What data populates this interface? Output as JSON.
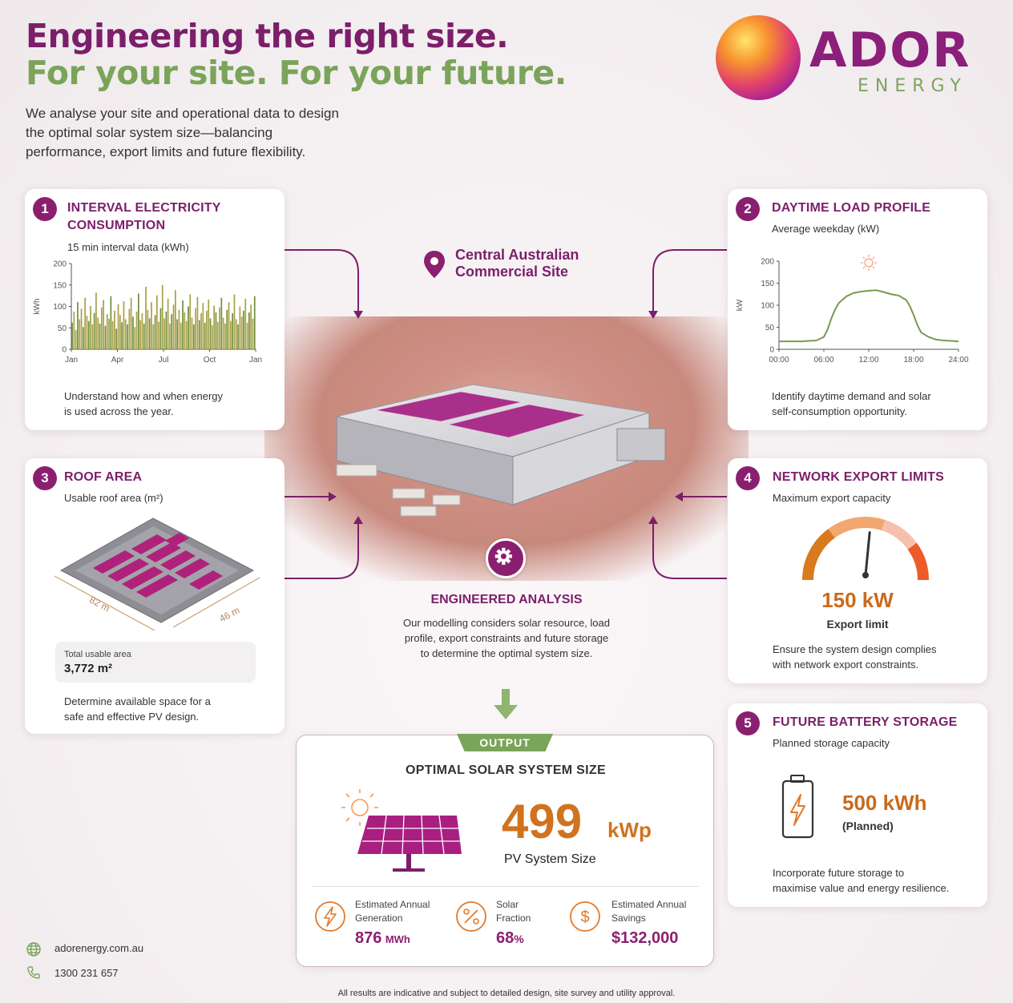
{
  "header": {
    "title_line1": "Engineering the right size.",
    "title_line2": "For your site. For your future.",
    "intro": "We analyse your site and operational data to design the optimal solar system size—balancing performance, export limits and future flexibility."
  },
  "logo": {
    "word": "ADOR",
    "sub": "ENERGY",
    "icon": "sun-orb-logo"
  },
  "center": {
    "site_label_line1": "Central Australian",
    "site_label_line2": "Commercial Site",
    "analysis_title": "ENGINEERED ANALYSIS",
    "analysis_desc": "Our modelling considers solar resource, load profile, export constraints and future storage to determine the optimal system size."
  },
  "cards": {
    "c1": {
      "num": "1",
      "title_line1": "INTERVAL ELECTRICITY",
      "title_line2": "CONSUMPTION",
      "sub": "15 min interval data (kWh)",
      "ylabel": "kWh",
      "desc_line1": "Understand how and when energy",
      "desc_line2": "is used across the year."
    },
    "c2": {
      "num": "2",
      "title": "DAYTIME LOAD PROFILE",
      "sub": "Average weekday (kW)",
      "ylabel": "kW",
      "desc_line1": "Identify daytime demand and solar",
      "desc_line2": "self-consumption opportunity."
    },
    "c3": {
      "num": "3",
      "title": "ROOF AREA",
      "sub": "Usable roof area (m²)",
      "dim_a": "82 m",
      "dim_b": "46 m",
      "total_label": "Total usable area",
      "total_value": "3,772 m²",
      "desc_line1": "Determine available space for a",
      "desc_line2": "safe and effective PV design."
    },
    "c4": {
      "num": "4",
      "title": "NETWORK EXPORT LIMITS",
      "sub": "Maximum export capacity",
      "value": "150 kW",
      "value_label": "Export limit",
      "gauge_level": 0.55,
      "desc_line1": "Ensure the system design complies",
      "desc_line2": "with network export constraints."
    },
    "c5": {
      "num": "5",
      "title": "FUTURE BATTERY STORAGE",
      "sub": "Planned storage capacity",
      "value": "500 kWh",
      "value_label": "(Planned)",
      "desc_line1": "Incorporate future storage to",
      "desc_line2": "maximise value and energy resilience."
    }
  },
  "output": {
    "badge": "OUTPUT",
    "title": "OPTIMAL SOLAR SYSTEM SIZE",
    "value": "499",
    "unit": "kWp",
    "value_label": "PV System Size",
    "stats": [
      {
        "label_line1": "Estimated Annual",
        "label_line2": "Generation",
        "value": "876",
        "unit": "MWh",
        "icon": "lightning-icon"
      },
      {
        "label_line1": "Solar",
        "label_line2": "Fraction",
        "value": "68",
        "unit": "%",
        "icon": "percent-icon"
      },
      {
        "label_line1": "Estimated Annual",
        "label_line2": "Savings",
        "value": "$132,000",
        "unit": "",
        "icon": "dollar-icon"
      }
    ]
  },
  "footer": {
    "website": "adorenergy.com.au",
    "phone": "1300 231 657",
    "disclaimer": "All results are indicative and subject to detailed design, site survey and utility approval."
  },
  "chart_data": [
    {
      "type": "bar",
      "title": "15 min interval data (kWh)",
      "ylabel": "kWh",
      "ylim": [
        0,
        200
      ],
      "yticks": [
        "0",
        "50",
        "100",
        "150",
        "200"
      ],
      "xticks": [
        "Jan",
        "Apr",
        "Jul",
        "Oct",
        "Jan"
      ],
      "values": [
        62,
        88,
        45,
        110,
        70,
        95,
        52,
        120,
        78,
        66,
        101,
        58,
        85,
        132,
        74,
        60,
        98,
        115,
        55,
        82,
        71,
        124,
        66,
        90,
        48,
        105,
        80,
        63,
        112,
        70,
        58,
        94,
        120,
        76,
        52,
        88,
        130,
        68,
        84,
        60,
        146,
        92,
        72,
        110,
        58,
        80,
        126,
        64,
        96,
        150,
        72,
        88,
        118,
        60,
        82,
        104,
        138,
        70,
        92,
        62,
        114,
        86,
        66,
        100,
        128,
        74,
        58,
        96,
        122,
        68,
        84,
        108,
        62,
        90,
        116,
        72,
        56,
        102,
        86,
        64,
        98,
        120,
        74,
        60,
        92,
        110,
        66,
        84,
        128,
        70,
        58,
        100,
        76,
        90,
        118,
        62,
        86,
        104,
        72,
        124
      ]
    },
    {
      "type": "line",
      "title": "Average weekday (kW)",
      "ylabel": "kW",
      "ylim": [
        0,
        200
      ],
      "yticks": [
        "0",
        "50",
        "100",
        "150",
        "200"
      ],
      "xticks": [
        "00:00",
        "06:00",
        "12:00",
        "18:00",
        "24:00"
      ],
      "x": [
        0,
        1,
        2,
        3,
        4,
        5,
        6,
        6.5,
        7,
        7.5,
        8,
        9,
        10,
        11,
        12,
        13,
        14,
        15,
        16,
        17,
        17.5,
        18,
        18.5,
        19,
        20,
        21,
        22,
        23,
        24
      ],
      "y": [
        18,
        18,
        18,
        18,
        19,
        20,
        28,
        45,
        70,
        90,
        105,
        120,
        128,
        131,
        133,
        134,
        130,
        125,
        122,
        112,
        98,
        78,
        55,
        38,
        28,
        22,
        20,
        19,
        18
      ]
    }
  ]
}
